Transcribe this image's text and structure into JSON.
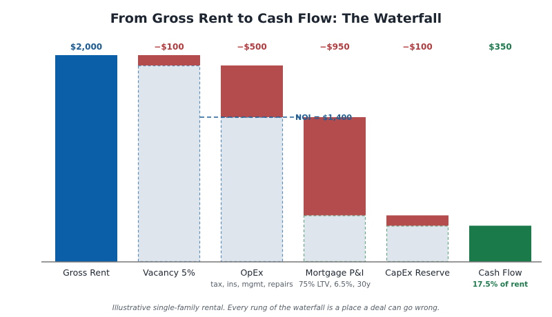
{
  "chart_data": {
    "type": "waterfall",
    "title": "From Gross Rent to Cash Flow: The Waterfall",
    "steps": [
      {
        "category": "Gross Rent",
        "value": 2000,
        "kind": "total",
        "label": "$2,000",
        "sublabel": ""
      },
      {
        "category": "Vacancy 5%",
        "value": -100,
        "kind": "decrease",
        "label": "−$100",
        "sublabel": ""
      },
      {
        "category": "OpEx",
        "value": -500,
        "kind": "decrease",
        "label": "−$500",
        "sublabel": "tax, ins, mgmt, repairs"
      },
      {
        "category": "Mortgage P&I",
        "value": -950,
        "kind": "decrease",
        "label": "−$950",
        "sublabel": "75% LTV, 6.5%, 30y"
      },
      {
        "category": "CapEx Reserve",
        "value": -100,
        "kind": "decrease",
        "label": "−$100",
        "sublabel": ""
      },
      {
        "category": "Cash Flow",
        "value": 350,
        "kind": "result",
        "label": "$350",
        "sublabel": "17.5% of rent"
      }
    ],
    "reference_line": {
      "value": 1400,
      "label": "NOI = $1,400"
    },
    "ylim": [
      0,
      2000
    ],
    "xlabel": "",
    "ylabel": "",
    "note": "Illustrative single-family rental. Every rung of the waterfall is a place a deal can go wrong.",
    "colors": {
      "total": "#0b5ea8",
      "decrease": "#b44b4d",
      "result": "#1a7a4a",
      "remaining_fill": "#dfe5ec",
      "remaining_border_blue": "#5b8fb8",
      "remaining_border_green": "#6aaa85",
      "total_label": "#1a5b95",
      "decrease_label": "#b43b3d",
      "result_label": "#1d7a4c",
      "noi": "#1f5f96",
      "axis": "#777777"
    }
  }
}
